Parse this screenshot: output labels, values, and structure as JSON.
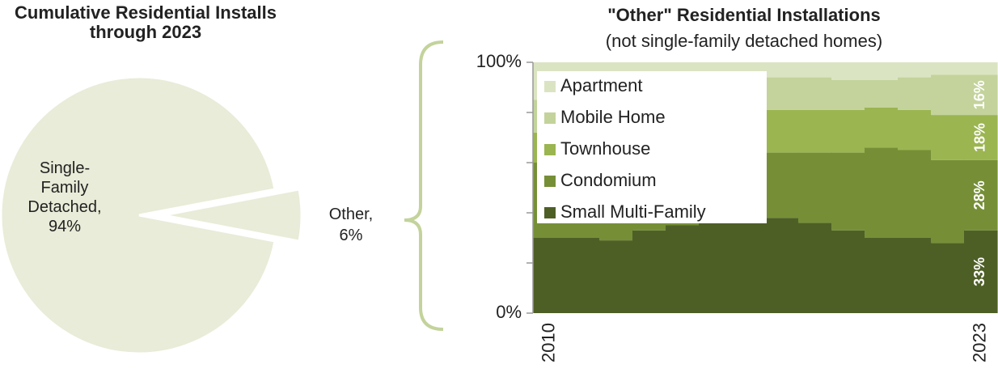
{
  "chart_data": [
    {
      "type": "pie",
      "title": "Cumulative Residential Installs through 2023",
      "categories": [
        "Single-Family Detached,",
        "Other,"
      ],
      "values": [
        94,
        6
      ],
      "value_labels": [
        "94%",
        "6%"
      ],
      "color": "#e8ecd8"
    },
    {
      "type": "stacked_area",
      "title": "\"Other\" Residential Installations",
      "subtitle": "(not single-family detached homes)",
      "categories": [
        "2010",
        null,
        null,
        null,
        null,
        null,
        null,
        null,
        null,
        null,
        null,
        null,
        null,
        "2023"
      ],
      "series": [
        {
          "name": "Small Multi-Family",
          "color": "#4e5f26",
          "values": [
            30,
            30,
            29,
            33,
            35,
            37,
            38,
            38,
            36,
            33,
            30,
            30,
            28,
            33
          ],
          "value_labels": [
            null,
            null,
            null,
            null,
            null,
            null,
            null,
            null,
            null,
            null,
            null,
            null,
            null,
            "33%"
          ]
        },
        {
          "name": "Condomium",
          "color": "#768f37",
          "values": [
            30,
            30,
            32,
            29,
            28,
            26,
            26,
            26,
            28,
            31,
            36,
            35,
            33,
            28
          ],
          "value_labels": [
            null,
            null,
            null,
            null,
            null,
            null,
            null,
            null,
            null,
            null,
            null,
            null,
            null,
            "28%"
          ]
        },
        {
          "name": "Townhouse",
          "color": "#9bb551",
          "values": [
            12,
            13,
            13,
            14,
            15,
            16,
            16,
            17,
            17,
            17,
            16,
            16,
            18,
            18
          ],
          "value_labels": [
            null,
            null,
            null,
            null,
            null,
            null,
            null,
            null,
            null,
            null,
            null,
            null,
            null,
            "18%"
          ]
        },
        {
          "name": "Mobile Home",
          "color": "#c3d39b",
          "values": [
            13,
            13,
            14,
            14,
            14,
            14,
            14,
            13,
            13,
            12,
            11,
            13,
            16,
            16
          ],
          "value_labels": [
            null,
            null,
            null,
            null,
            null,
            null,
            null,
            null,
            null,
            null,
            null,
            null,
            null,
            "16%"
          ]
        },
        {
          "name": "Apartment",
          "color": "#dbe4c2",
          "values": [
            15,
            14,
            12,
            10,
            8,
            7,
            6,
            6,
            6,
            7,
            7,
            6,
            5,
            5
          ]
        }
      ],
      "ylim": [
        0,
        100
      ],
      "yticks": [
        {
          "value": 0,
          "label": "0%"
        },
        {
          "value": 100,
          "label": "100%"
        }
      ],
      "yminorticks": [
        20,
        40,
        60,
        80
      ],
      "legend": "top-left"
    }
  ]
}
